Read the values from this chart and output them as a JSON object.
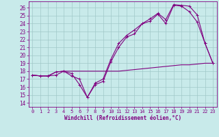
{
  "bg_color": "#c8eaea",
  "grid_color": "#a0c8c8",
  "line_color": "#800080",
  "xlabel": "Windchill (Refroidissement éolien,°C)",
  "xlim": [
    -0.5,
    23.5
  ],
  "ylim": [
    13.5,
    26.8
  ],
  "xticks": [
    0,
    1,
    2,
    3,
    4,
    5,
    6,
    7,
    8,
    9,
    10,
    11,
    12,
    13,
    14,
    15,
    16,
    17,
    18,
    19,
    20,
    21,
    22,
    23
  ],
  "yticks": [
    14,
    15,
    16,
    17,
    18,
    19,
    20,
    21,
    22,
    23,
    24,
    25,
    26
  ],
  "line1_x": [
    0,
    1,
    2,
    3,
    4,
    5,
    6,
    7,
    8,
    9,
    10,
    11,
    12,
    13,
    14,
    15,
    16,
    17,
    18,
    19,
    20,
    21,
    22,
    23
  ],
  "line1_y": [
    17.5,
    17.4,
    17.4,
    17.5,
    18.0,
    17.7,
    16.3,
    14.7,
    16.3,
    16.7,
    19.2,
    21.0,
    22.3,
    22.7,
    24.0,
    24.3,
    25.2,
    24.0,
    26.3,
    26.2,
    25.5,
    24.2,
    21.5,
    19.0
  ],
  "line2_x": [
    0,
    1,
    2,
    3,
    4,
    5,
    6,
    7,
    8,
    9,
    10,
    11,
    12,
    13,
    14,
    15,
    16,
    17,
    18,
    19,
    20,
    21,
    22,
    23
  ],
  "line2_y": [
    17.5,
    17.4,
    17.4,
    17.9,
    18.0,
    18.0,
    18.0,
    18.0,
    18.0,
    18.0,
    18.0,
    18.0,
    18.1,
    18.2,
    18.3,
    18.4,
    18.5,
    18.6,
    18.7,
    18.8,
    18.8,
    18.9,
    19.0,
    19.0
  ],
  "line3_x": [
    0,
    1,
    2,
    3,
    4,
    5,
    6,
    7,
    8,
    9,
    10,
    11,
    12,
    13,
    14,
    15,
    16,
    17,
    18,
    19,
    20,
    21,
    22,
    23
  ],
  "line3_y": [
    17.5,
    17.4,
    17.4,
    17.9,
    18.0,
    17.4,
    17.0,
    14.7,
    16.5,
    17.0,
    19.5,
    21.5,
    22.5,
    23.2,
    24.0,
    24.6,
    25.3,
    24.5,
    26.4,
    26.3,
    26.2,
    25.1,
    21.5,
    19.0
  ],
  "marker_size": 2.5,
  "line_width": 0.8,
  "tick_fontsize": 5.0,
  "xlabel_fontsize": 5.5
}
